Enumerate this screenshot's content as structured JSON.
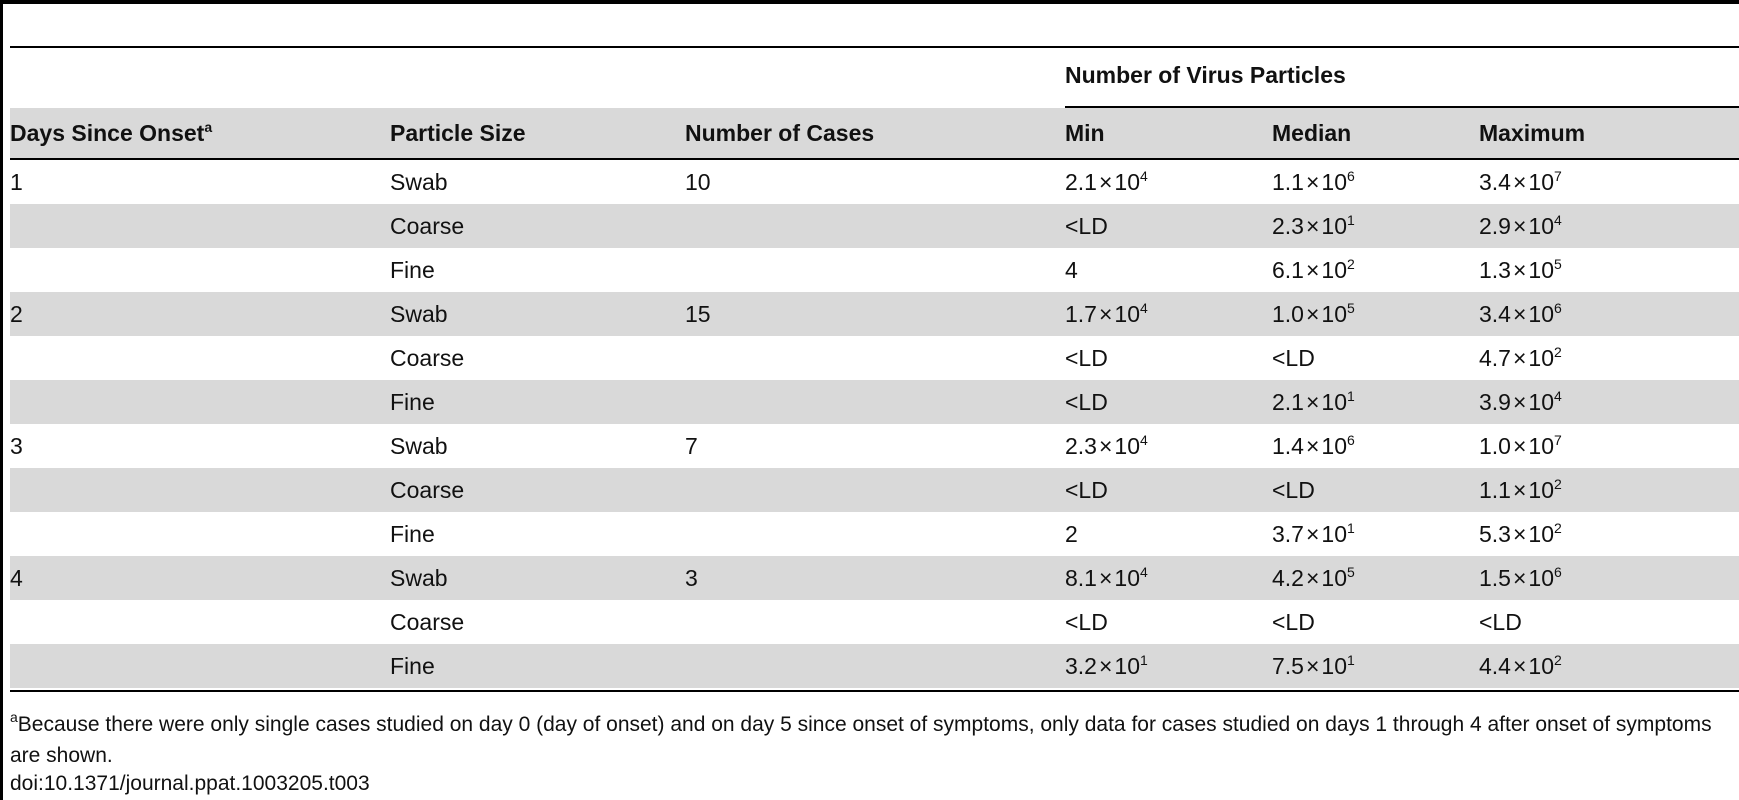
{
  "table": {
    "group_header": "Number of Virus Particles",
    "headers": {
      "days": "Days Since Onset",
      "days_sup": "a",
      "particle": "Particle Size",
      "cases": "Number of Cases",
      "min": "Min",
      "median": "Median",
      "max": "Maximum"
    },
    "rows": [
      {
        "day": "1",
        "size": "Swab",
        "cases": "10",
        "min": {
          "m": "2.1",
          "e": "4"
        },
        "median": {
          "m": "1.1",
          "e": "6"
        },
        "max": {
          "m": "3.4",
          "e": "7"
        }
      },
      {
        "day": "",
        "size": "Coarse",
        "cases": "",
        "min": {
          "t": "<LD"
        },
        "median": {
          "m": "2.3",
          "e": "1"
        },
        "max": {
          "m": "2.9",
          "e": "4"
        }
      },
      {
        "day": "",
        "size": "Fine",
        "cases": "",
        "min": {
          "t": "4"
        },
        "median": {
          "m": "6.1",
          "e": "2"
        },
        "max": {
          "m": "1.3",
          "e": "5"
        }
      },
      {
        "day": "2",
        "size": "Swab",
        "cases": "15",
        "min": {
          "m": "1.7",
          "e": "4"
        },
        "median": {
          "m": "1.0",
          "e": "5"
        },
        "max": {
          "m": "3.4",
          "e": "6"
        }
      },
      {
        "day": "",
        "size": "Coarse",
        "cases": "",
        "min": {
          "t": "<LD"
        },
        "median": {
          "t": "<LD"
        },
        "max": {
          "m": "4.7",
          "e": "2"
        }
      },
      {
        "day": "",
        "size": "Fine",
        "cases": "",
        "min": {
          "t": "<LD"
        },
        "median": {
          "m": "2.1",
          "e": "1"
        },
        "max": {
          "m": "3.9",
          "e": "4"
        }
      },
      {
        "day": "3",
        "size": "Swab",
        "cases": "7",
        "min": {
          "m": "2.3",
          "e": "4"
        },
        "median": {
          "m": "1.4",
          "e": "6"
        },
        "max": {
          "m": "1.0",
          "e": "7"
        }
      },
      {
        "day": "",
        "size": "Coarse",
        "cases": "",
        "min": {
          "t": "<LD"
        },
        "median": {
          "t": "<LD"
        },
        "max": {
          "m": "1.1",
          "e": "2"
        }
      },
      {
        "day": "",
        "size": "Fine",
        "cases": "",
        "min": {
          "t": "2"
        },
        "median": {
          "m": "3.7",
          "e": "1"
        },
        "max": {
          "m": "5.3",
          "e": "2"
        }
      },
      {
        "day": "4",
        "size": "Swab",
        "cases": "3",
        "min": {
          "m": "8.1",
          "e": "4"
        },
        "median": {
          "m": "4.2",
          "e": "5"
        },
        "max": {
          "m": "1.5",
          "e": "6"
        }
      },
      {
        "day": "",
        "size": "Coarse",
        "cases": "",
        "min": {
          "t": "<LD"
        },
        "median": {
          "t": "<LD"
        },
        "max": {
          "t": "<LD"
        }
      },
      {
        "day": "",
        "size": "Fine",
        "cases": "",
        "min": {
          "m": "3.2",
          "e": "1"
        },
        "median": {
          "m": "7.5",
          "e": "1"
        },
        "max": {
          "m": "4.4",
          "e": "2"
        }
      }
    ]
  },
  "footnote": {
    "sup": "a",
    "text": "Because there were only single cases studied on day 0 (day of onset) and on day 5 since onset of symptoms, only data for cases studied on days 1 through 4 after onset of symptoms are shown."
  },
  "doi": "doi:10.1371/journal.ppat.1003205.t003",
  "colors": {
    "row_shade": "#d9d9d9",
    "rule": "#000000"
  }
}
